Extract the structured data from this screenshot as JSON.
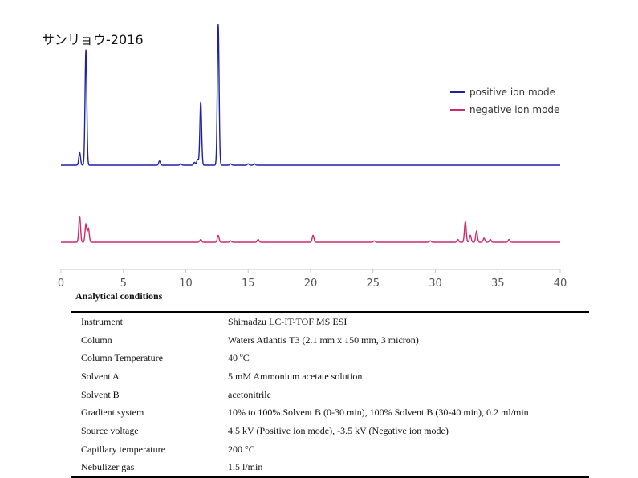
{
  "sample_title": "サンリョウ-2016",
  "chart_data": {
    "type": "line",
    "xlim": [
      0,
      40
    ],
    "x_ticks": [
      0,
      5,
      10,
      15,
      20,
      25,
      30,
      35,
      40
    ],
    "grid": false,
    "legend_placement": "top-right",
    "series": [
      {
        "name": "positive ion mode",
        "color": "#1f1fa8",
        "baseline": 0,
        "peaks": [
          {
            "x": 1.5,
            "y": 0.09
          },
          {
            "x": 2.0,
            "y": 0.82
          },
          {
            "x": 7.9,
            "y": 0.03
          },
          {
            "x": 9.6,
            "y": 0.01
          },
          {
            "x": 10.7,
            "y": 0.02
          },
          {
            "x": 10.95,
            "y": 0.04
          },
          {
            "x": 11.2,
            "y": 0.45
          },
          {
            "x": 12.6,
            "y": 1.0
          },
          {
            "x": 13.6,
            "y": 0.01
          },
          {
            "x": 15.0,
            "y": 0.01
          },
          {
            "x": 15.5,
            "y": 0.01
          }
        ]
      },
      {
        "name": "negative ion mode",
        "color": "#cc2a6e",
        "baseline": 0,
        "peaks": [
          {
            "x": 1.5,
            "y": 0.19
          },
          {
            "x": 2.0,
            "y": 0.13
          },
          {
            "x": 2.2,
            "y": 0.1
          },
          {
            "x": 11.2,
            "y": 0.02
          },
          {
            "x": 12.6,
            "y": 0.05
          },
          {
            "x": 13.6,
            "y": 0.01
          },
          {
            "x": 15.8,
            "y": 0.02
          },
          {
            "x": 20.2,
            "y": 0.05
          },
          {
            "x": 25.1,
            "y": 0.01
          },
          {
            "x": 29.6,
            "y": 0.01
          },
          {
            "x": 31.8,
            "y": 0.02
          },
          {
            "x": 32.4,
            "y": 0.15
          },
          {
            "x": 32.8,
            "y": 0.05
          },
          {
            "x": 33.3,
            "y": 0.08
          },
          {
            "x": 33.9,
            "y": 0.03
          },
          {
            "x": 34.4,
            "y": 0.02
          },
          {
            "x": 35.9,
            "y": 0.02
          }
        ]
      }
    ]
  },
  "conditions_title": "Analytical conditions",
  "conditions": [
    {
      "key": "Instrument",
      "value": "Shimadzu LC-IT-TOF MS ESI"
    },
    {
      "key": "Column",
      "value": "Waters Atlantis T3 (2.1 mm x 150 mm, 3 micron)"
    },
    {
      "key": "Column Temperature",
      "value": "40 ºC"
    },
    {
      "key": "Solvent A",
      "value": "5 mM Ammonium acetate solution"
    },
    {
      "key": "Solvent B",
      "value": "acetonitrile"
    },
    {
      "key": "Gradient system",
      "value": "10% to 100% Solvent B (0-30 min), 100% Solvent B (30-40 min), 0.2 ml/min"
    },
    {
      "key": "Source voltage",
      "value": "4.5 kV (Positive ion mode), -3.5 kV (Negative ion mode)"
    },
    {
      "key": "Capillary temperature",
      "value": "200 °C"
    },
    {
      "key": "Nebulizer gas",
      "value": "1.5 l/min"
    }
  ]
}
